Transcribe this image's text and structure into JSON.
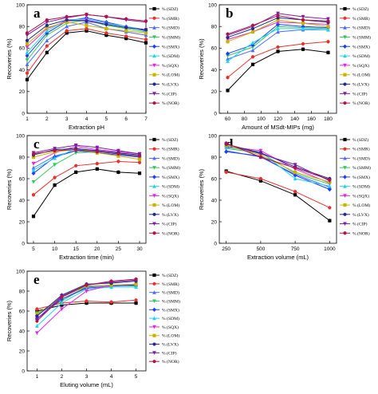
{
  "chart_data": [
    {
      "type": "line",
      "panel": "a",
      "xlabel": "Extraction pH",
      "ylabel": "Recoveries (%)",
      "x": [
        1,
        2,
        3,
        4,
        5,
        6,
        7
      ],
      "xlim": [
        1,
        7
      ],
      "ylim": [
        0,
        100
      ],
      "xticks": [
        1,
        2,
        3,
        4,
        5,
        6,
        7
      ],
      "yticks": [
        0,
        20,
        40,
        60,
        80,
        100
      ],
      "legend_position": "right",
      "series": [
        {
          "name": "% (SDZ)",
          "color": "#000000",
          "values": [
            31,
            56,
            74,
            76,
            72,
            69,
            65
          ]
        },
        {
          "name": "% (SMR)",
          "color": "#e8312f",
          "values": [
            37,
            62,
            76,
            78,
            74,
            71,
            68
          ]
        },
        {
          "name": "% (SMD)",
          "color": "#4b6bff",
          "values": [
            45,
            67,
            80,
            84,
            78,
            75,
            72
          ]
        },
        {
          "name": "% (SMM)",
          "color": "#34c759",
          "values": [
            49,
            72,
            83,
            86,
            81,
            78,
            75
          ]
        },
        {
          "name": "% (SMX)",
          "color": "#1f3cff",
          "values": [
            53,
            74,
            85,
            88,
            84,
            80,
            76
          ]
        },
        {
          "name": "% (SDM)",
          "color": "#22d3ee",
          "values": [
            56,
            76,
            86,
            87,
            83,
            80,
            77
          ]
        },
        {
          "name": "% (SQX)",
          "color": "#e028e0",
          "values": [
            61,
            78,
            85,
            86,
            82,
            79,
            77
          ]
        },
        {
          "name": "% (LOM)",
          "color": "#c8b400",
          "values": [
            64,
            79,
            84,
            81,
            78,
            76,
            74
          ]
        },
        {
          "name": "% (LVX)",
          "color": "#1e2b8f",
          "values": [
            67,
            81,
            86,
            85,
            82,
            79,
            77
          ]
        },
        {
          "name": "% (CIP)",
          "color": "#7b1fa2",
          "values": [
            72,
            84,
            88,
            91,
            89,
            86,
            84
          ]
        },
        {
          "name": "% (NOR)",
          "color": "#b0124a",
          "values": [
            74,
            86,
            89,
            91,
            89,
            87,
            85
          ]
        }
      ]
    },
    {
      "type": "line",
      "panel": "b",
      "xlabel": "Amount of MSdt-MIPs (mg)",
      "ylabel": "Recoveries (%)",
      "x": [
        60,
        90,
        120,
        150,
        180
      ],
      "xlim": [
        50,
        190
      ],
      "ylim": [
        0,
        100
      ],
      "xticks": [
        60,
        80,
        100,
        120,
        140,
        160,
        180
      ],
      "yticks": [
        0,
        20,
        40,
        60,
        80,
        100
      ],
      "legend_position": "right",
      "series": [
        {
          "name": "% (SDZ)",
          "color": "#000000",
          "values": [
            21,
            45,
            57,
            59,
            56
          ]
        },
        {
          "name": "% (SMR)",
          "color": "#e8312f",
          "values": [
            33,
            52,
            61,
            64,
            66
          ]
        },
        {
          "name": "% (SMD)",
          "color": "#4b6bff",
          "values": [
            50,
            58,
            75,
            77,
            77
          ]
        },
        {
          "name": "% (SMM)",
          "color": "#34c759",
          "values": [
            53,
            61,
            80,
            79,
            78
          ]
        },
        {
          "name": "% (SMX)",
          "color": "#1f3cff",
          "values": [
            55,
            63,
            82,
            80,
            79
          ]
        },
        {
          "name": "% (SDM)",
          "color": "#22d3ee",
          "values": [
            48,
            65,
            78,
            78,
            77
          ]
        },
        {
          "name": "% (SQX)",
          "color": "#e028e0",
          "values": [
            68,
            75,
            84,
            83,
            82
          ]
        },
        {
          "name": "% (LOM)",
          "color": "#c8b400",
          "values": [
            66,
            75,
            86,
            83,
            80
          ]
        },
        {
          "name": "% (LVX)",
          "color": "#1e2b8f",
          "values": [
            70,
            78,
            88,
            86,
            84
          ]
        },
        {
          "name": "% (CIP)",
          "color": "#7b1fa2",
          "values": [
            72,
            80,
            92,
            89,
            87
          ]
        },
        {
          "name": "% (NOR)",
          "color": "#b0124a",
          "values": [
            73,
            81,
            90,
            86,
            85
          ]
        }
      ]
    },
    {
      "type": "line",
      "panel": "c",
      "xlabel": "Extraction time (min)",
      "ylabel": "Recoveries (%)",
      "x": [
        5,
        10,
        15,
        20,
        25,
        30
      ],
      "xlim": [
        3.5,
        31.5
      ],
      "ylim": [
        0,
        100
      ],
      "xticks": [
        5,
        10,
        15,
        20,
        25,
        30
      ],
      "yticks": [
        0,
        20,
        40,
        60,
        80,
        100
      ],
      "legend_position": "right",
      "series": [
        {
          "name": "% (SDZ)",
          "color": "#000000",
          "values": [
            25,
            54,
            66,
            69,
            66,
            65
          ]
        },
        {
          "name": "% (SMR)",
          "color": "#e8312f",
          "values": [
            45,
            61,
            72,
            74,
            76,
            75
          ]
        },
        {
          "name": "% (SMD)",
          "color": "#4b6bff",
          "values": [
            70,
            81,
            86,
            86,
            84,
            80
          ]
        },
        {
          "name": "% (SMM)",
          "color": "#34c759",
          "values": [
            57,
            73,
            84,
            85,
            83,
            80
          ]
        },
        {
          "name": "% (SMX)",
          "color": "#1f3cff",
          "values": [
            65,
            80,
            86,
            84,
            82,
            80
          ]
        },
        {
          "name": "% (SDM)",
          "color": "#22d3ee",
          "values": [
            68,
            79,
            88,
            85,
            83,
            81
          ]
        },
        {
          "name": "% (SQX)",
          "color": "#e028e0",
          "values": [
            74,
            84,
            90,
            87,
            85,
            83
          ]
        },
        {
          "name": "% (LOM)",
          "color": "#c8b400",
          "values": [
            80,
            85,
            87,
            84,
            81,
            78
          ]
        },
        {
          "name": "% (LVX)",
          "color": "#1e2b8f",
          "values": [
            82,
            87,
            88,
            86,
            84,
            82
          ]
        },
        {
          "name": "% (CIP)",
          "color": "#7b1fa2",
          "values": [
            84,
            88,
            91,
            89,
            86,
            83
          ]
        },
        {
          "name": "% (NOR)",
          "color": "#b0124a",
          "values": [
            83,
            86,
            87,
            85,
            83,
            81
          ]
        }
      ]
    },
    {
      "type": "line",
      "panel": "d",
      "xlabel": "Extraction volume (mL)",
      "ylabel": "Recoveries (%)",
      "x": [
        250,
        500,
        750,
        1000
      ],
      "xlim": [
        200,
        1050
      ],
      "ylim": [
        0,
        100
      ],
      "xticks": [
        250,
        500,
        750,
        1000
      ],
      "yticks": [
        0,
        20,
        40,
        60,
        80,
        100
      ],
      "legend_position": "right",
      "series": [
        {
          "name": "% (SDZ)",
          "color": "#000000",
          "values": [
            67,
            58,
            45,
            21
          ]
        },
        {
          "name": "% (SMR)",
          "color": "#e8312f",
          "values": [
            66,
            60,
            48,
            33
          ]
        },
        {
          "name": "% (SMD)",
          "color": "#4b6bff",
          "values": [
            86,
            80,
            64,
            52
          ]
        },
        {
          "name": "% (SMM)",
          "color": "#34c759",
          "values": [
            88,
            84,
            65,
            55
          ]
        },
        {
          "name": "% (SMX)",
          "color": "#1f3cff",
          "values": [
            85,
            81,
            63,
            50
          ]
        },
        {
          "name": "% (SDM)",
          "color": "#22d3ee",
          "values": [
            89,
            85,
            60,
            53
          ]
        },
        {
          "name": "% (SQX)",
          "color": "#e028e0",
          "values": [
            90,
            86,
            69,
            56
          ]
        },
        {
          "name": "% (LOM)",
          "color": "#c8b400",
          "values": [
            91,
            82,
            66,
            57
          ]
        },
        {
          "name": "% (LVX)",
          "color": "#1e2b8f",
          "values": [
            92,
            84,
            71,
            60
          ]
        },
        {
          "name": "% (CIP)",
          "color": "#7b1fa2",
          "values": [
            92,
            83,
            73,
            58
          ]
        },
        {
          "name": "% (NOR)",
          "color": "#b0124a",
          "values": [
            93,
            80,
            70,
            59
          ]
        }
      ]
    },
    {
      "type": "line",
      "panel": "e",
      "xlabel": "Eluting volume (mL)",
      "ylabel": "Recoveries (%)",
      "x": [
        1,
        2,
        3,
        4,
        5
      ],
      "xlim": [
        0.6,
        5.4
      ],
      "ylim": [
        0,
        100
      ],
      "xticks": [
        1,
        2,
        3,
        4,
        5
      ],
      "yticks": [
        0,
        20,
        40,
        60,
        80,
        100
      ],
      "legend_position": "right",
      "series": [
        {
          "name": "% (SDZ)",
          "color": "#000000",
          "values": [
            60,
            66,
            68,
            68,
            68
          ]
        },
        {
          "name": "% (SMR)",
          "color": "#e8312f",
          "values": [
            62,
            68,
            70,
            69,
            71
          ]
        },
        {
          "name": "% (SMD)",
          "color": "#4b6bff",
          "values": [
            56,
            72,
            84,
            86,
            86
          ]
        },
        {
          "name": "% (SMM)",
          "color": "#34c759",
          "values": [
            58,
            70,
            85,
            86,
            85
          ]
        },
        {
          "name": "% (SMX)",
          "color": "#1f3cff",
          "values": [
            52,
            72,
            83,
            85,
            86
          ]
        },
        {
          "name": "% (SDM)",
          "color": "#22d3ee",
          "values": [
            45,
            68,
            82,
            84,
            84
          ]
        },
        {
          "name": "% (SQX)",
          "color": "#e028e0",
          "values": [
            38,
            62,
            80,
            86,
            87
          ]
        },
        {
          "name": "% (LOM)",
          "color": "#c8b400",
          "values": [
            57,
            74,
            85,
            86,
            87
          ]
        },
        {
          "name": "% (LVX)",
          "color": "#1e2b8f",
          "values": [
            55,
            76,
            87,
            88,
            90
          ]
        },
        {
          "name": "% (CIP)",
          "color": "#7b1fa2",
          "values": [
            52,
            75,
            86,
            89,
            91
          ]
        },
        {
          "name": "% (NOR)",
          "color": "#b0124a",
          "values": [
            50,
            74,
            86,
            90,
            92
          ]
        }
      ]
    }
  ]
}
